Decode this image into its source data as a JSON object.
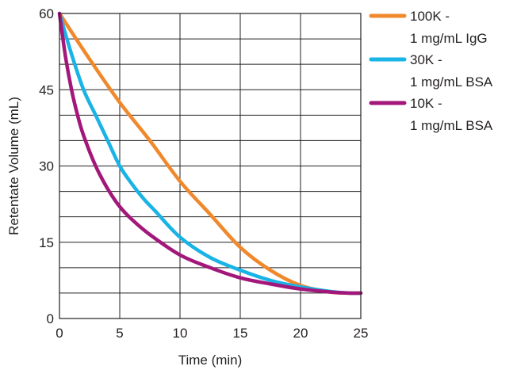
{
  "chart_data": {
    "type": "line",
    "title": "",
    "xlabel": "Time (min)",
    "ylabel": "Retentate Volume (mL)",
    "xlim": [
      0,
      25
    ],
    "ylim": [
      0,
      60
    ],
    "x_ticks": [
      "0",
      "5",
      "10",
      "15",
      "20",
      "25"
    ],
    "y_ticks": [
      "0",
      "15",
      "30",
      "45",
      "60"
    ],
    "grid": true,
    "legend_position": "right",
    "series": [
      {
        "name_line1": "100K -",
        "name_line2": "1 mg/mL IgG",
        "color": "#f0892c",
        "x": [
          0,
          2.5,
          5,
          7.5,
          10,
          12.5,
          15,
          17.5,
          20,
          22.5,
          24,
          25
        ],
        "y": [
          60,
          51,
          42.5,
          35,
          27,
          20.5,
          14,
          9.5,
          6.5,
          5.2,
          5,
          5
        ]
      },
      {
        "name_line1": "30K -",
        "name_line2": "1 mg/mL BSA",
        "color": "#1ab3e6",
        "x": [
          0,
          1,
          2,
          3,
          4,
          5,
          6,
          7,
          8,
          10,
          12.5,
          15,
          17.5,
          20,
          22.5,
          24,
          25
        ],
        "y": [
          60,
          52,
          45,
          40,
          35,
          30,
          26.5,
          23.5,
          21,
          16,
          12,
          9.5,
          7.5,
          6.2,
          5.3,
          5,
          5
        ]
      },
      {
        "name_line1": "10K -",
        "name_line2": "1 mg/mL BSA",
        "color": "#a3177a",
        "x": [
          0,
          0.5,
          1,
          1.5,
          2,
          3,
          4,
          5,
          6,
          7.5,
          10,
          12.5,
          15,
          17.5,
          20,
          22.5,
          24,
          25
        ],
        "y": [
          60,
          51.5,
          45,
          40,
          36,
          30,
          25.5,
          22,
          19.5,
          16.5,
          12.5,
          10,
          8,
          6.8,
          5.8,
          5.2,
          5,
          5
        ]
      }
    ]
  }
}
